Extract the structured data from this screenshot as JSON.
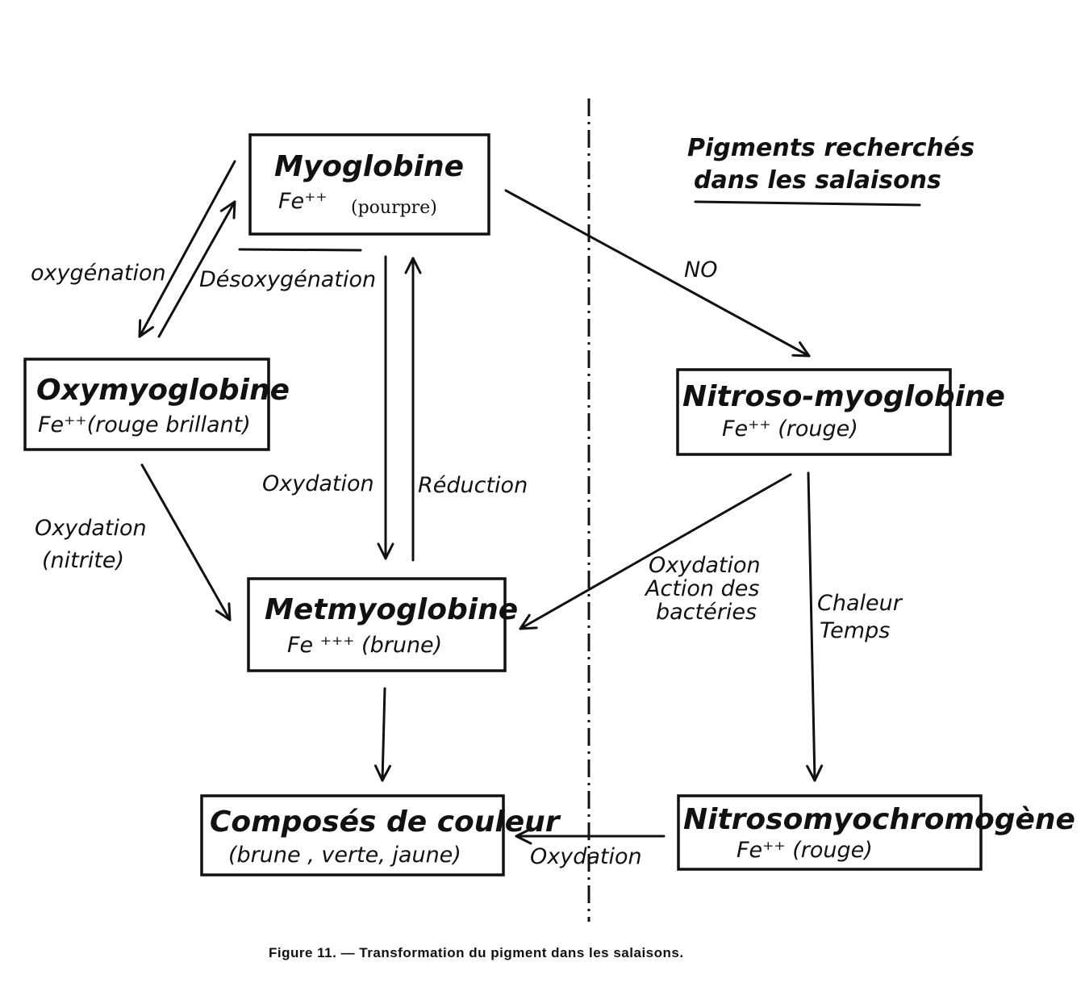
{
  "pigments_heading": {
    "line1": "Pigments recherchés",
    "line2": "dans les salaisons"
  },
  "nodes": {
    "myoglobine": {
      "name": "Myoglobine",
      "fe": "Fe⁺⁺",
      "color": "(pourpre)"
    },
    "oxymyoglobine": {
      "name": "Oxymyoglobine",
      "detail": "Fe⁺⁺(rouge brillant)"
    },
    "metmyoglobine": {
      "name": "Metmyoglobine",
      "detail": "Fe ⁺⁺⁺ (brune)"
    },
    "composes": {
      "name": "Composés de couleur",
      "detail": "(brune , verte, jaune)"
    },
    "nitroso_myoglobine": {
      "name": "Nitroso-myoglobine",
      "detail": "Fe⁺⁺ (rouge)"
    },
    "nitrosomyochromogene": {
      "name": "Nitrosomyochromogène",
      "detail": "Fe⁺⁺ (rouge)"
    }
  },
  "labels": {
    "oxygenation": "oxygénation",
    "desoxygenation": "Désoxygénation",
    "no": "NO",
    "oxydation_center": "Oxydation",
    "reduction": "Réduction",
    "oxydation_nitrite_1": "Oxydation",
    "oxydation_nitrite_2": "(nitrite)",
    "oxydation_bacteries_1": "Oxydation",
    "oxydation_bacteries_2": "Action des",
    "oxydation_bacteries_3": "bactéries",
    "chaleur": "Chaleur",
    "temps": "Temps",
    "oxydation_bottom": "Oxydation"
  },
  "caption": "Figure 11. — Transformation du pigment dans les salaisons."
}
